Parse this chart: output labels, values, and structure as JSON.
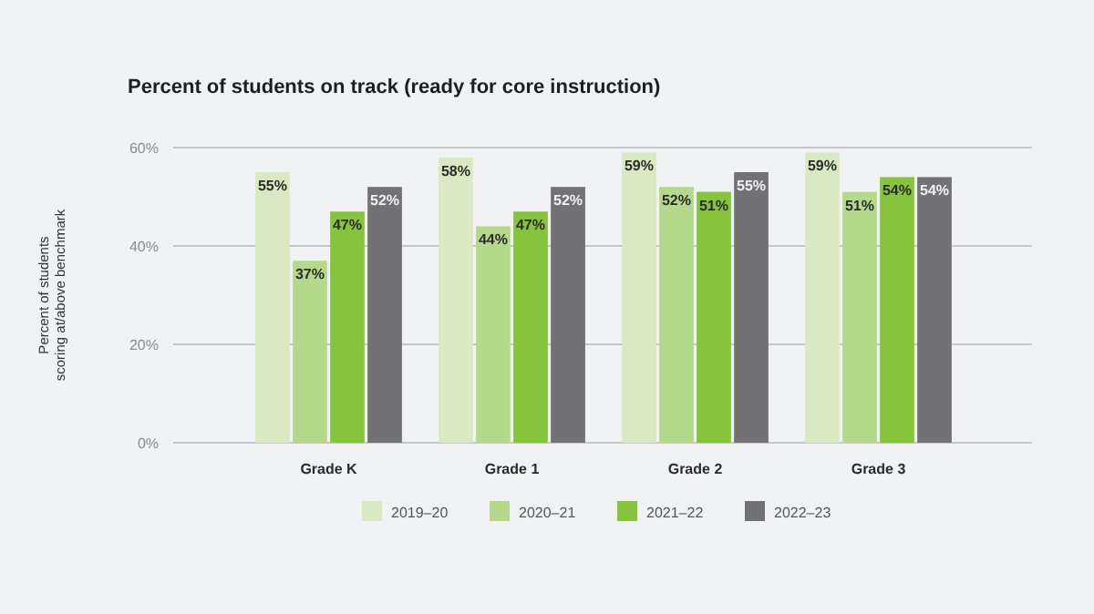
{
  "chart_data": {
    "type": "bar",
    "title": "Percent of students on track (ready for core instruction)",
    "ylabel": "Percent of students scoring at/above benchmark",
    "categories": [
      "Grade K",
      "Grade 1",
      "Grade 2",
      "Grade 3"
    ],
    "series": [
      {
        "name": "2019–20",
        "color": "#d9eac2",
        "values": [
          55,
          58,
          59,
          59
        ],
        "value_labels": [
          "55%",
          "58%",
          "59%",
          "59%"
        ]
      },
      {
        "name": "2020–21",
        "color": "#b5d98a",
        "values": [
          37,
          44,
          52,
          51
        ],
        "value_labels": [
          "37%",
          "44%",
          "52%",
          "51%"
        ]
      },
      {
        "name": "2021–22",
        "color": "#86c43c",
        "values": [
          47,
          47,
          51,
          54
        ],
        "value_labels": [
          "47%",
          "47%",
          "51%",
          "54%"
        ]
      },
      {
        "name": "2022–23",
        "color": "#727274",
        "values": [
          52,
          52,
          55,
          54
        ],
        "value_labels": [
          "52%",
          "52%",
          "55%",
          "54%"
        ]
      }
    ],
    "ylim": [
      0,
      60
    ],
    "yticks": [
      {
        "value": 0,
        "label": "0%"
      },
      {
        "value": 20,
        "label": "20%"
      },
      {
        "value": 40,
        "label": "40%"
      },
      {
        "value": 60,
        "label": "60%"
      }
    ],
    "grid": "y",
    "legend": "bottom"
  }
}
